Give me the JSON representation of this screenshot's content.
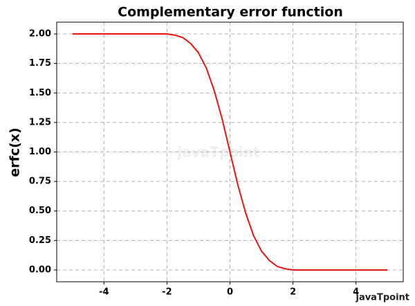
{
  "chart_data": {
    "type": "line",
    "title": "Complementary error function",
    "y_label": "erfc(x)",
    "watermark": "javaTpoint",
    "x": [
      -5,
      -4.75,
      -4.5,
      -4.25,
      -4,
      -3.75,
      -3.5,
      -3.25,
      -3,
      -2.75,
      -2.5,
      -2.25,
      -2,
      -1.75,
      -1.5,
      -1.25,
      -1,
      -0.75,
      -0.5,
      -0.25,
      0,
      0.25,
      0.5,
      0.75,
      1,
      1.25,
      1.5,
      1.75,
      2,
      2.25,
      2.5,
      2.75,
      3,
      3.25,
      3.5,
      3.75,
      4,
      4.25,
      4.5,
      4.75,
      5
    ],
    "series": [
      {
        "color": "#e8140e",
        "values": [
          2,
          2,
          2,
          2,
          2,
          2,
          2,
          2,
          2,
          2,
          2,
          2,
          2,
          1.99,
          1.97,
          1.92,
          1.84,
          1.71,
          1.52,
          1.28,
          1,
          0.72,
          0.48,
          0.29,
          0.16,
          0.08,
          0.03,
          0.01,
          0,
          0,
          0,
          0,
          0,
          0,
          0,
          0,
          0,
          0,
          0,
          0,
          0
        ]
      }
    ],
    "xlim": [
      -5.5,
      5.5
    ],
    "ylim": [
      -0.1,
      2.1
    ],
    "xticks": [
      -4,
      -2,
      0,
      2,
      4
    ],
    "yticks": [
      {
        "value": 0,
        "label": "0.00"
      },
      {
        "value": 0.25,
        "label": "0.25"
      },
      {
        "value": 0.5,
        "label": "0.50"
      },
      {
        "value": 0.75,
        "label": "0.75"
      },
      {
        "value": 1,
        "label": "1.00"
      },
      {
        "value": 1.25,
        "label": "1.25"
      },
      {
        "value": 1.5,
        "label": "1.50"
      },
      {
        "value": 1.75,
        "label": "1.75"
      },
      {
        "value": 2,
        "label": "2.00"
      }
    ],
    "grid": true
  }
}
